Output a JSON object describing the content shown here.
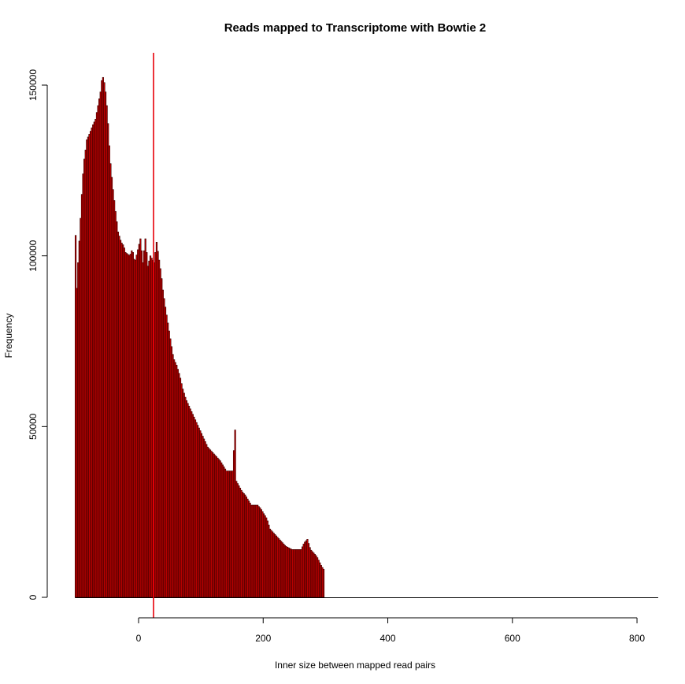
{
  "chart_data": {
    "type": "bar",
    "title": "Reads mapped to Transcriptome with Bowtie 2",
    "xlabel": "Inner size between mapped read pairs",
    "ylabel": "Frequency",
    "xlim": [
      -125,
      835
    ],
    "ylim": [
      0,
      150000
    ],
    "x_ticks": [
      0,
      200,
      400,
      600,
      800
    ],
    "y_ticks": [
      0,
      50000,
      100000,
      150000
    ],
    "bin_width": 2,
    "bin_start": -102,
    "zero_fill_to": 834,
    "vline": {
      "x": 24,
      "color": "#e8000a"
    },
    "colors": {
      "bar_fill": "#c40000",
      "bar_edge": "#3a0000"
    },
    "profile": [
      [
        -102,
        106000
      ],
      [
        -101,
        86000
      ],
      [
        -99,
        95000
      ],
      [
        -97,
        101000
      ],
      [
        -94,
        111000
      ],
      [
        -92,
        118000
      ],
      [
        -89,
        127000
      ],
      [
        -86,
        131000
      ],
      [
        -84,
        134000
      ],
      [
        -79,
        136000
      ],
      [
        -75,
        138000
      ],
      [
        -70,
        140000
      ],
      [
        -66,
        144000
      ],
      [
        -62,
        148000
      ],
      [
        -59,
        153000
      ],
      [
        -55,
        150000
      ],
      [
        -51,
        142000
      ],
      [
        -47,
        129000
      ],
      [
        -43,
        121000
      ],
      [
        -38,
        113000
      ],
      [
        -34,
        107000
      ],
      [
        -29,
        104000
      ],
      [
        -25,
        103000
      ],
      [
        -22,
        101000
      ],
      [
        -15,
        100000
      ],
      [
        -11,
        102000
      ],
      [
        -7,
        98000
      ],
      [
        -3,
        101000
      ],
      [
        2,
        105000
      ],
      [
        6,
        98000
      ],
      [
        10,
        105000
      ],
      [
        14,
        97000
      ],
      [
        18,
        100000
      ],
      [
        24,
        98000
      ],
      [
        28,
        104000
      ],
      [
        31,
        100000
      ],
      [
        35,
        95000
      ],
      [
        38,
        90000
      ],
      [
        42,
        85000
      ],
      [
        48,
        78000
      ],
      [
        55,
        70000
      ],
      [
        60,
        68000
      ],
      [
        65,
        65000
      ],
      [
        70,
        61000
      ],
      [
        75,
        58000
      ],
      [
        80,
        56000
      ],
      [
        90,
        52000
      ],
      [
        95,
        50000
      ],
      [
        100,
        48000
      ],
      [
        105,
        46000
      ],
      [
        110,
        44000
      ],
      [
        120,
        42000
      ],
      [
        130,
        40000
      ],
      [
        140,
        37000
      ],
      [
        150,
        37000
      ],
      [
        154,
        49000
      ],
      [
        156,
        34000
      ],
      [
        165,
        31000
      ],
      [
        170,
        30000
      ],
      [
        180,
        27000
      ],
      [
        190,
        27000
      ],
      [
        195,
        26000
      ],
      [
        205,
        23000
      ],
      [
        210,
        20000
      ],
      [
        215,
        19000
      ],
      [
        225,
        17000
      ],
      [
        235,
        15000
      ],
      [
        245,
        14000
      ],
      [
        260,
        14000
      ],
      [
        265,
        16000
      ],
      [
        270,
        17000
      ],
      [
        275,
        14000
      ],
      [
        285,
        12000
      ],
      [
        293,
        9000
      ],
      [
        297,
        8000
      ]
    ]
  }
}
